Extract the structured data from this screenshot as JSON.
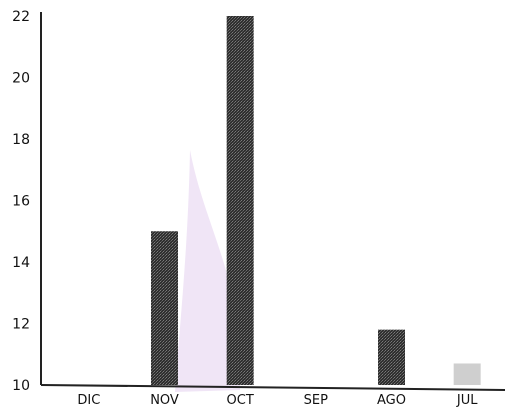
{
  "chart_data": {
    "type": "bar",
    "categories": [
      "DIC",
      "NOV",
      "OCT",
      "SEP",
      "AGO",
      "JUL"
    ],
    "values": [
      null,
      15,
      22,
      null,
      11.8,
      10.7
    ],
    "ylim": [
      10,
      22
    ],
    "yticks": [
      "10",
      "12",
      "14",
      "16",
      "18",
      "20",
      "22"
    ],
    "grid": false,
    "legend": "none",
    "colors": {
      "bar": "#3a3a3a",
      "faded_bar": "#cfcfcf",
      "axis": "#222222"
    }
  }
}
